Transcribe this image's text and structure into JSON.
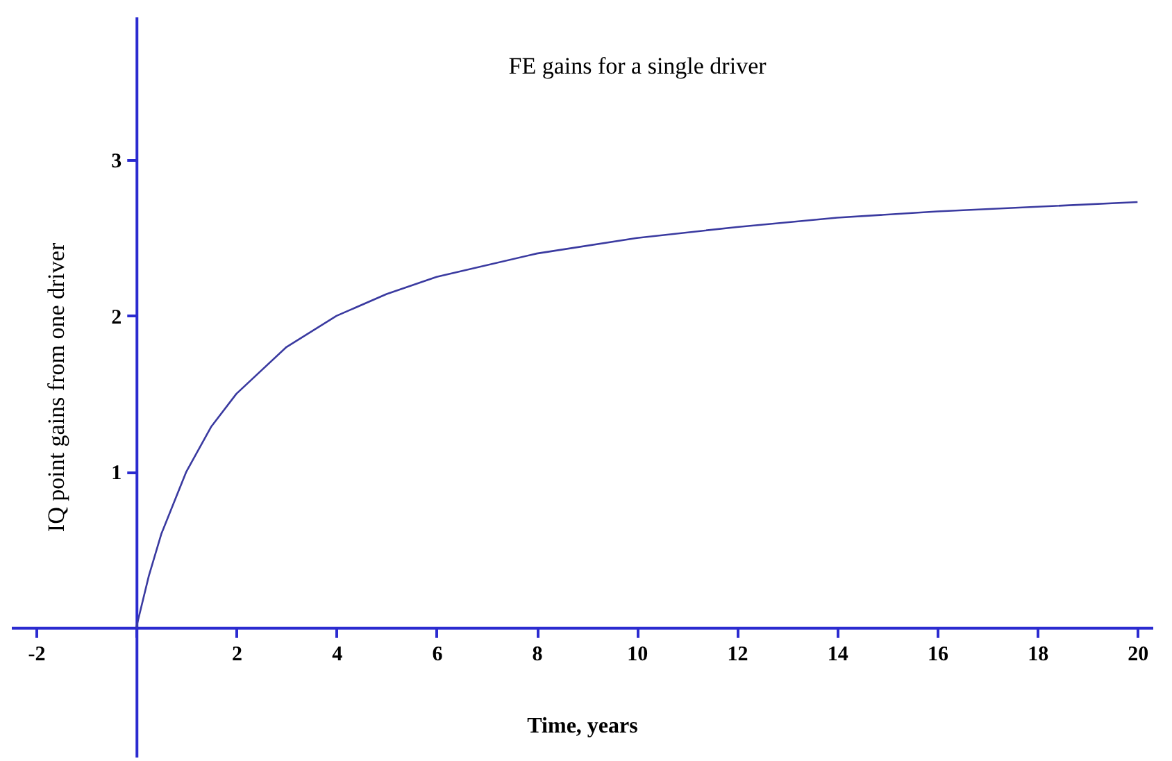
{
  "chart_data": {
    "type": "line",
    "title": "FE gains for a single driver",
    "xlabel": "Time, years",
    "ylabel": "IQ point gains from one driver",
    "x": [
      0,
      0.25,
      0.5,
      1,
      1.5,
      2,
      3,
      4,
      5,
      6,
      8,
      10,
      12,
      14,
      16,
      18,
      20
    ],
    "series": [
      {
        "color": "#3a3aa0",
        "values": [
          0,
          0.33,
          0.6,
          1.0,
          1.29,
          1.5,
          1.8,
          2.0,
          2.14,
          2.25,
          2.4,
          2.5,
          2.57,
          2.63,
          2.67,
          2.7,
          2.73
        ]
      }
    ],
    "xlim": [
      -2.5,
      20.3
    ],
    "ylim": [
      -0.83,
      3.92
    ],
    "xticks": [
      -2,
      {
        "value": 0,
        "label": null
      },
      2,
      4,
      6,
      8,
      10,
      12,
      14,
      16,
      18,
      20
    ],
    "yticks": [
      1,
      2,
      3
    ],
    "grid": false,
    "legend": false,
    "marker": "none",
    "line_style": "solid"
  }
}
